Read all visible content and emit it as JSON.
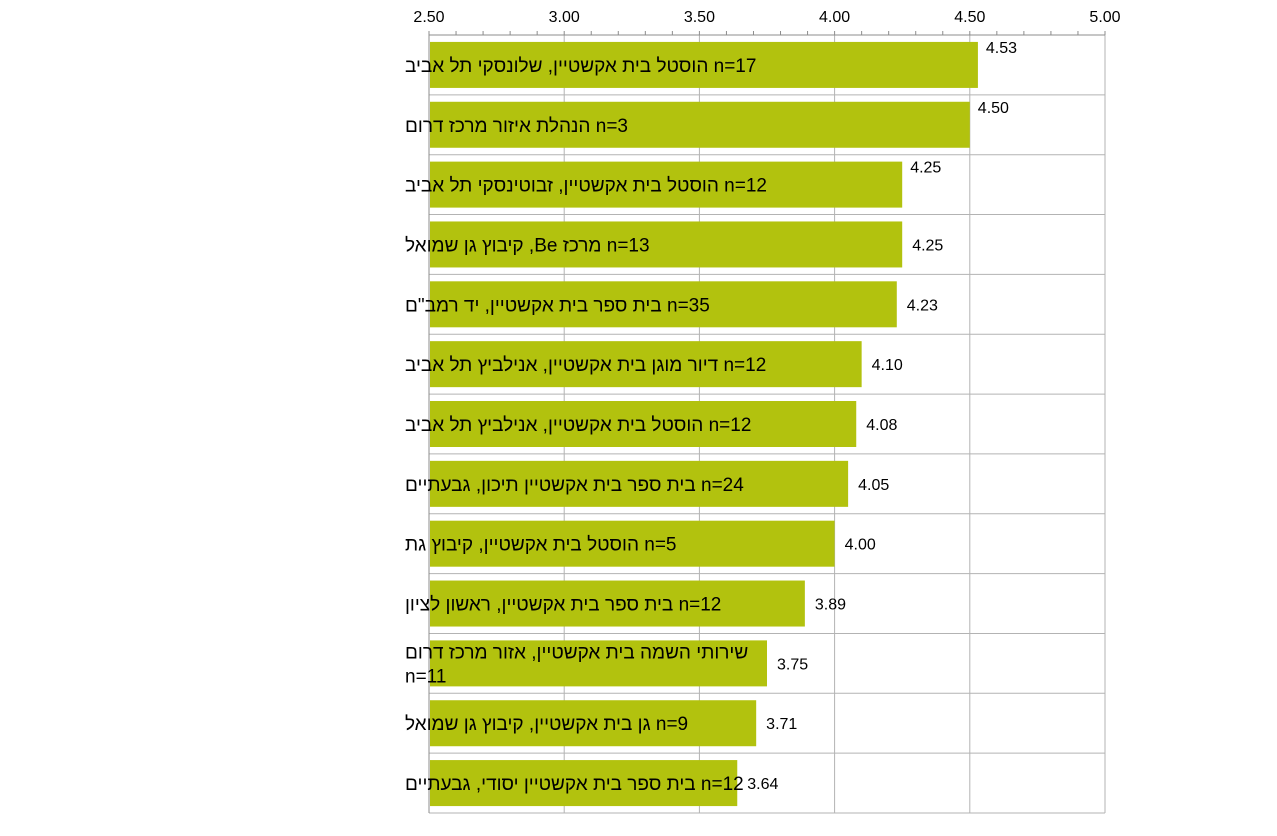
{
  "chart_data": {
    "type": "bar",
    "orientation": "horizontal",
    "title": "",
    "xlabel": "",
    "ylabel": "",
    "xlim": [
      2.5,
      5.0
    ],
    "ticks": [
      "2.50",
      "3.00",
      "3.50",
      "4.00",
      "4.50",
      "5.00"
    ],
    "tick_values": [
      2.5,
      3.0,
      3.5,
      4.0,
      4.5,
      5.0
    ],
    "grid": true,
    "legend": "none",
    "bar_color": "#b2c20e",
    "categories": [
      [
        "n=17 הוסטל בית אקשטיין, שלונסקי תל אביב"
      ],
      [
        "n=3 הנהלת איזור מרכז דרום"
      ],
      [
        "n=12 הוסטל בית אקשטיין, זבוטינסקי תל אביב"
      ],
      [
        "n=13 מרכז Be, קיבוץ גן שמואל"
      ],
      [
        "n=35 בית ספר בית אקשטיין, יד רמב\"ם"
      ],
      [
        "n=12 דיור מוגן בית אקשטיין, אנילביץ תל אביב"
      ],
      [
        "n=12 הוסטל בית אקשטיין, אנילביץ תל אביב"
      ],
      [
        "n=24 בית ספר בית אקשטיין תיכון, גבעתיים"
      ],
      [
        "n=5 הוסטל בית אקשטיין, קיבוץ גת"
      ],
      [
        "n=12 בית ספר בית אקשטיין, ראשון לציון"
      ],
      [
        "שירותי השמה בית אקשטיין, אזור מרכז דרום",
        "n=11"
      ],
      [
        "n=9 גן בית אקשטיין, קיבוץ גן שמואל"
      ],
      [
        "n=12 בית ספר בית אקשטיין יסודי, גבעתיים"
      ]
    ],
    "values": [
      4.53,
      4.5,
      4.25,
      4.25,
      4.23,
      4.1,
      4.08,
      4.05,
      4.0,
      3.89,
      3.75,
      3.71,
      3.64
    ],
    "value_labels": [
      "4.53",
      "4.50",
      "4.25",
      "4.25",
      "4.23",
      "4.10",
      "4.08",
      "4.05",
      "4.00",
      "3.89",
      "3.75",
      "3.71",
      "3.64"
    ]
  }
}
